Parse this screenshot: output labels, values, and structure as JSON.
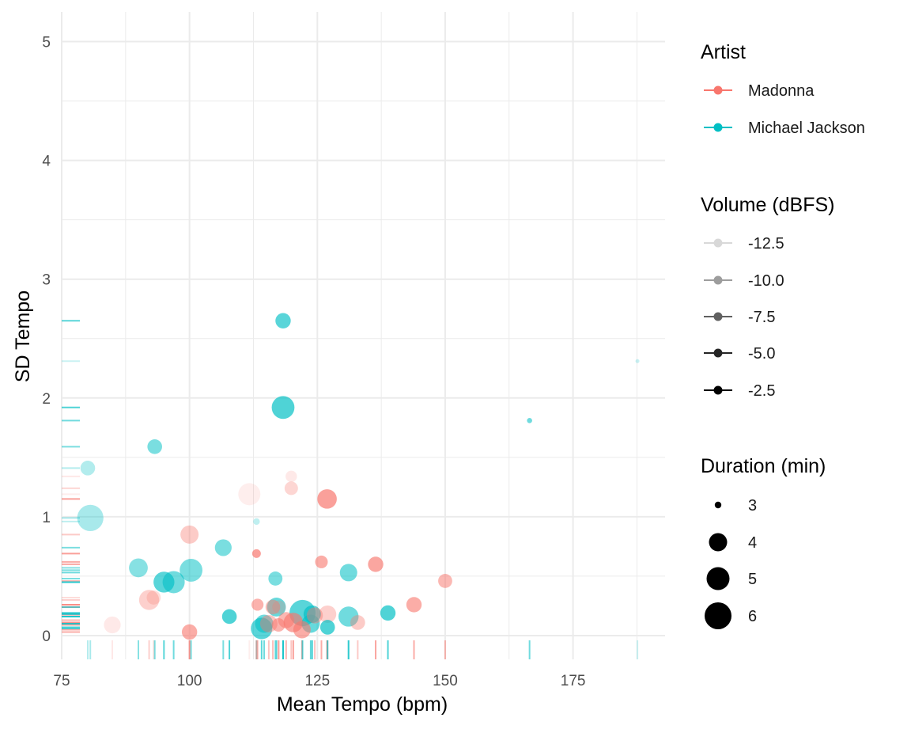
{
  "chart_data": {
    "type": "scatter",
    "xlabel": "Mean Tempo (bpm)",
    "ylabel": "SD Tempo",
    "xlim": [
      75,
      193
    ],
    "ylim": [
      -0.2,
      5.25
    ],
    "x_ticks": [
      "75",
      "100",
      "125",
      "150",
      "175"
    ],
    "y_ticks": [
      "0",
      "1",
      "2",
      "3",
      "4",
      "5"
    ],
    "grid": true,
    "rug": true,
    "legend_position": "right",
    "colors": {
      "Madonna": "#F8766D",
      "Michael Jackson": "#00BFC4"
    },
    "legends": {
      "artist": {
        "title": "Artist",
        "items": [
          "Madonna",
          "Michael Jackson"
        ]
      },
      "volume": {
        "title": "Volume (dBFS)",
        "items": [
          "-12.5",
          "-10.0",
          "-7.5",
          "-5.0",
          "-2.5"
        ]
      },
      "duration": {
        "title": "Duration (min)",
        "items": [
          "3",
          "4",
          "5",
          "6"
        ]
      }
    },
    "series": [
      {
        "name": "Madonna",
        "points": [
          {
            "x": 111.7,
            "y": 1.19,
            "dur": 5.3,
            "vol": -12.5
          },
          {
            "x": 119.9,
            "y": 1.34,
            "dur": 3.7,
            "vol": -12.0
          },
          {
            "x": 119.9,
            "y": 1.24,
            "dur": 4.0,
            "vol": -10.5
          },
          {
            "x": 126.9,
            "y": 1.15,
            "dur": 4.9,
            "vol": -6.0
          },
          {
            "x": 100.0,
            "y": 0.85,
            "dur": 4.7,
            "vol": -9.5
          },
          {
            "x": 113.1,
            "y": 0.69,
            "dur": 3.3,
            "vol": -6.0
          },
          {
            "x": 125.8,
            "y": 0.62,
            "dur": 3.9,
            "vol": -7.0
          },
          {
            "x": 136.4,
            "y": 0.6,
            "dur": 4.3,
            "vol": -6.5
          },
          {
            "x": 150.0,
            "y": 0.46,
            "dur": 4.1,
            "vol": -8.0
          },
          {
            "x": 92.1,
            "y": 0.3,
            "dur": 5.0,
            "vol": -10.0
          },
          {
            "x": 93.0,
            "y": 0.32,
            "dur": 4.1,
            "vol": -11.0
          },
          {
            "x": 113.3,
            "y": 0.26,
            "dur": 3.8,
            "vol": -7.5
          },
          {
            "x": 116.3,
            "y": 0.24,
            "dur": 4.2,
            "vol": -8.5
          },
          {
            "x": 143.9,
            "y": 0.26,
            "dur": 4.3,
            "vol": -7.0
          },
          {
            "x": 84.9,
            "y": 0.09,
            "dur": 4.5,
            "vol": -12.0
          },
          {
            "x": 100.0,
            "y": 0.03,
            "dur": 4.3,
            "vol": -7.0
          },
          {
            "x": 115.5,
            "y": 0.1,
            "dur": 4.6,
            "vol": -9.0
          },
          {
            "x": 117.4,
            "y": 0.09,
            "dur": 4.0,
            "vol": -7.5
          },
          {
            "x": 118.9,
            "y": 0.13,
            "dur": 4.4,
            "vol": -8.0
          },
          {
            "x": 120.3,
            "y": 0.11,
            "dur": 4.9,
            "vol": -6.5
          },
          {
            "x": 122.0,
            "y": 0.05,
            "dur": 4.6,
            "vol": -7.0
          },
          {
            "x": 124.5,
            "y": 0.17,
            "dur": 4.4,
            "vol": -9.0
          },
          {
            "x": 127.0,
            "y": 0.18,
            "dur": 4.6,
            "vol": -10.0
          },
          {
            "x": 132.9,
            "y": 0.11,
            "dur": 4.2,
            "vol": -9.5
          },
          {
            "x": 117.5,
            "y": 0.24,
            "dur": 4.0,
            "vol": -11.0
          }
        ]
      },
      {
        "name": "Michael Jackson",
        "points": [
          {
            "x": 118.3,
            "y": 2.65,
            "dur": 4.3,
            "vol": -6.5
          },
          {
            "x": 118.3,
            "y": 1.92,
            "dur": 5.4,
            "vol": -6.0
          },
          {
            "x": 187.6,
            "y": 2.31,
            "dur": 2.6,
            "vol": -11.5
          },
          {
            "x": 166.5,
            "y": 1.81,
            "dur": 2.8,
            "vol": -7.5
          },
          {
            "x": 80.1,
            "y": 1.41,
            "dur": 4.2,
            "vol": -10.5
          },
          {
            "x": 93.2,
            "y": 1.59,
            "dur": 4.2,
            "vol": -8.0
          },
          {
            "x": 80.6,
            "y": 0.99,
            "dur": 5.9,
            "vol": -10.0
          },
          {
            "x": 113.1,
            "y": 0.96,
            "dur": 3.0,
            "vol": -11.0
          },
          {
            "x": 106.6,
            "y": 0.74,
            "dur": 4.5,
            "vol": -8.0
          },
          {
            "x": 90.0,
            "y": 0.57,
            "dur": 4.8,
            "vol": -8.5
          },
          {
            "x": 100.3,
            "y": 0.55,
            "dur": 5.4,
            "vol": -8.0
          },
          {
            "x": 116.8,
            "y": 0.48,
            "dur": 4.1,
            "vol": -8.0
          },
          {
            "x": 131.1,
            "y": 0.53,
            "dur": 4.6,
            "vol": -7.5
          },
          {
            "x": 95.0,
            "y": 0.45,
            "dur": 5.1,
            "vol": -6.5
          },
          {
            "x": 96.9,
            "y": 0.45,
            "dur": 5.3,
            "vol": -7.5
          },
          {
            "x": 117.0,
            "y": 0.24,
            "dur": 4.8,
            "vol": -7.0
          },
          {
            "x": 122.1,
            "y": 0.19,
            "dur": 5.9,
            "vol": -6.5
          },
          {
            "x": 124.0,
            "y": 0.18,
            "dur": 4.6,
            "vol": -6.5
          },
          {
            "x": 107.8,
            "y": 0.16,
            "dur": 4.2,
            "vol": -6.0
          },
          {
            "x": 131.1,
            "y": 0.16,
            "dur": 5.0,
            "vol": -7.5
          },
          {
            "x": 138.8,
            "y": 0.19,
            "dur": 4.3,
            "vol": -6.0
          },
          {
            "x": 114.1,
            "y": 0.06,
            "dur": 5.2,
            "vol": -6.5
          },
          {
            "x": 114.6,
            "y": 0.1,
            "dur": 4.7,
            "vol": -7.5
          },
          {
            "x": 123.7,
            "y": 0.1,
            "dur": 4.7,
            "vol": -7.0
          },
          {
            "x": 127.0,
            "y": 0.07,
            "dur": 4.2,
            "vol": -6.0
          }
        ]
      }
    ]
  }
}
